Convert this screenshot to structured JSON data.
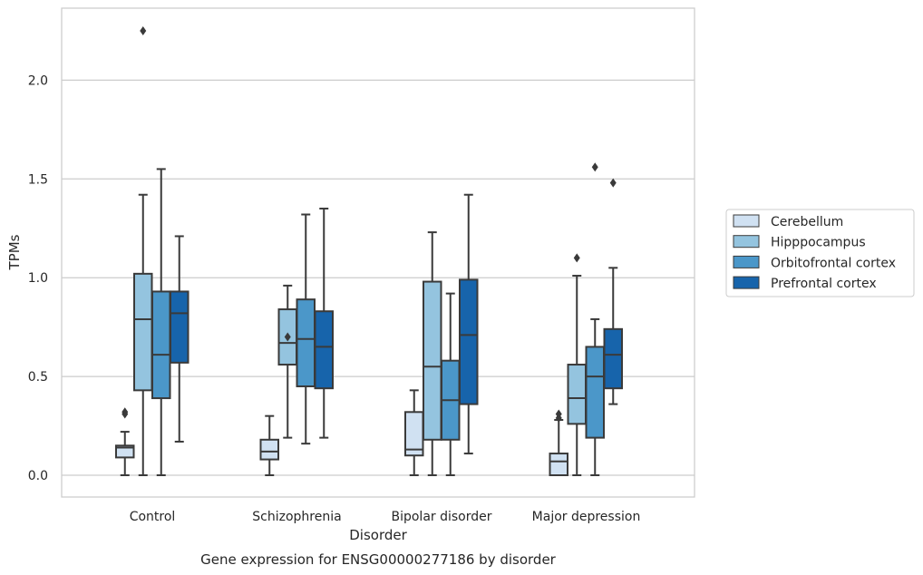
{
  "chart_data": {
    "type": "box",
    "caption": "Gene expression for ENSG00000277186 by disorder",
    "xlabel": "Disorder",
    "ylabel": "TPMs",
    "ylim": [
      -0.11,
      2.38
    ],
    "yticks": [
      0.0,
      0.5,
      1.0,
      1.5,
      2.0
    ],
    "ytick_labels": [
      "0.0",
      "0.5",
      "1.0",
      "1.5",
      "2.0"
    ],
    "grid": "horizontal",
    "legend_position": "right",
    "categories": [
      "Control",
      "Schizophrenia",
      "Bipolar disorder",
      "Major depression"
    ],
    "colors": {
      "Cerebellum": "#d0e1f2",
      "Hipppocampus": "#94c4df",
      "Orbitofrontal cortex": "#4b97c9",
      "Prefrontal cortex": "#1764ab",
      "line": "#3a3a3a",
      "grid": "#cccccc",
      "frame": "#cccccc"
    },
    "series": [
      {
        "name": "Cerebellum",
        "boxes": [
          {
            "whislo": 0.0,
            "q1": 0.09,
            "med": 0.14,
            "q3": 0.15,
            "whishi": 0.22,
            "fliers": [
              0.31,
              0.32
            ]
          },
          {
            "whislo": 0.0,
            "q1": 0.08,
            "med": 0.12,
            "q3": 0.18,
            "whishi": 0.3,
            "fliers": []
          },
          {
            "whislo": 0.0,
            "q1": 0.1,
            "med": 0.13,
            "q3": 0.32,
            "whishi": 0.43,
            "fliers": []
          },
          {
            "whislo": 0.0,
            "q1": 0.0,
            "med": 0.07,
            "q3": 0.11,
            "whishi": 0.28,
            "fliers": [
              0.29,
              0.31
            ]
          }
        ]
      },
      {
        "name": "Hipppocampus",
        "boxes": [
          {
            "whislo": 0.0,
            "q1": 0.43,
            "med": 0.79,
            "q3": 1.02,
            "whishi": 1.42,
            "fliers": [
              2.25
            ]
          },
          {
            "whislo": 0.19,
            "q1": 0.56,
            "med": 0.67,
            "q3": 0.84,
            "whishi": 0.96,
            "fliers": [
              0.7
            ]
          },
          {
            "whislo": 0.0,
            "q1": 0.18,
            "med": 0.55,
            "q3": 0.98,
            "whishi": 1.23,
            "fliers": []
          },
          {
            "whislo": 0.0,
            "q1": 0.26,
            "med": 0.39,
            "q3": 0.56,
            "whishi": 1.01,
            "fliers": [
              1.1
            ]
          }
        ]
      },
      {
        "name": "Orbitofrontal cortex",
        "boxes": [
          {
            "whislo": 0.0,
            "q1": 0.39,
            "med": 0.61,
            "q3": 0.93,
            "whishi": 1.55,
            "fliers": []
          },
          {
            "whislo": 0.16,
            "q1": 0.45,
            "med": 0.69,
            "q3": 0.89,
            "whishi": 1.32,
            "fliers": []
          },
          {
            "whislo": 0.0,
            "q1": 0.18,
            "med": 0.38,
            "q3": 0.58,
            "whishi": 0.92,
            "fliers": []
          },
          {
            "whislo": 0.0,
            "q1": 0.19,
            "med": 0.5,
            "q3": 0.65,
            "whishi": 0.79,
            "fliers": [
              1.56
            ]
          }
        ]
      },
      {
        "name": "Prefrontal cortex",
        "boxes": [
          {
            "whislo": 0.17,
            "q1": 0.57,
            "med": 0.82,
            "q3": 0.93,
            "whishi": 1.21,
            "fliers": []
          },
          {
            "whislo": 0.19,
            "q1": 0.44,
            "med": 0.65,
            "q3": 0.83,
            "whishi": 1.35,
            "fliers": []
          },
          {
            "whislo": 0.11,
            "q1": 0.36,
            "med": 0.71,
            "q3": 0.99,
            "whishi": 1.42,
            "fliers": []
          },
          {
            "whislo": 0.36,
            "q1": 0.44,
            "med": 0.61,
            "q3": 0.74,
            "whishi": 1.05,
            "fliers": [
              1.48
            ]
          }
        ]
      }
    ]
  }
}
